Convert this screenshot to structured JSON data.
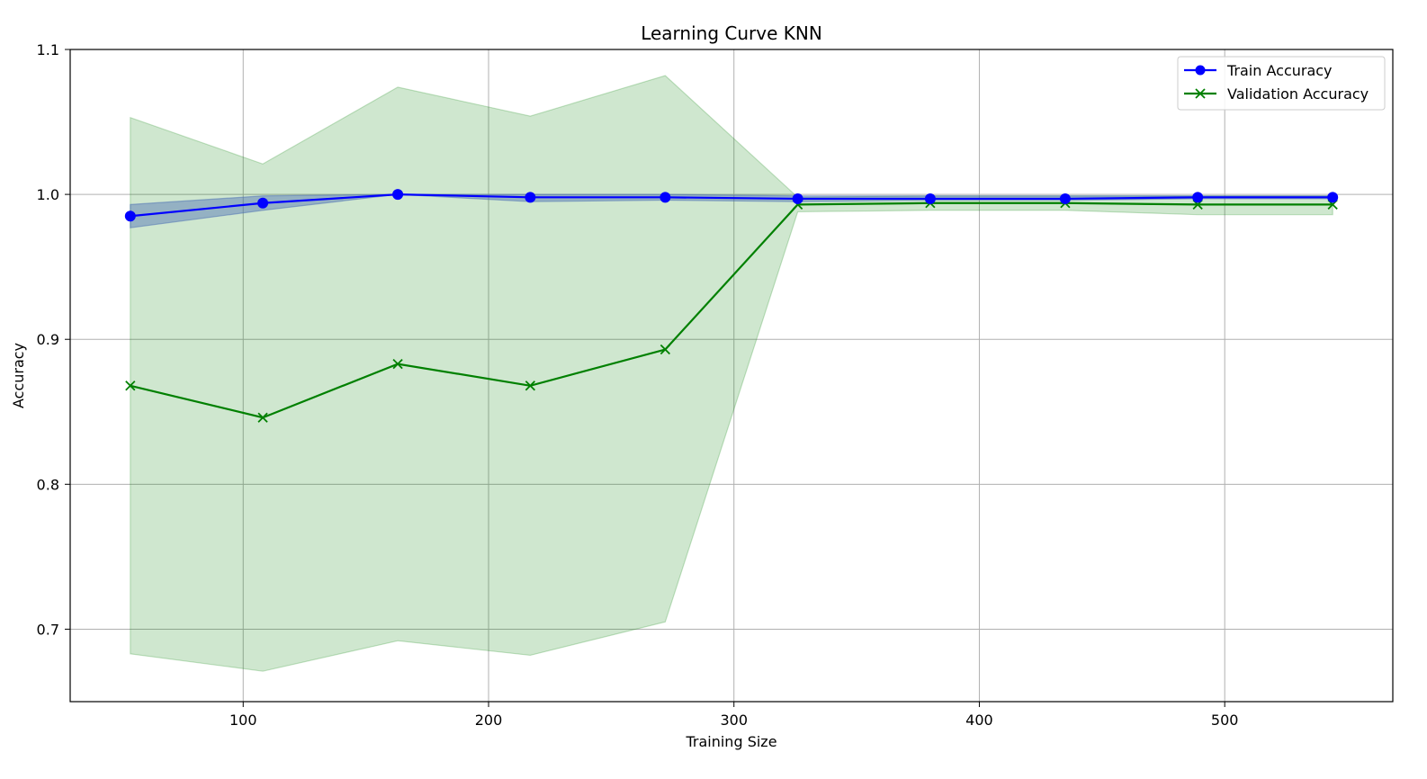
{
  "chart_data": {
    "type": "line",
    "title": "Learning Curve KNN",
    "xlabel": "Training Size",
    "ylabel": "Accuracy",
    "xlim": [
      29.5,
      568.5
    ],
    "ylim": [
      0.65,
      1.1
    ],
    "xticks": [
      100,
      200,
      300,
      400,
      500
    ],
    "yticks": [
      0.7,
      0.8,
      0.9,
      1.0,
      1.1
    ],
    "xtick_labels": [
      "100",
      "200",
      "300",
      "400",
      "500"
    ],
    "ytick_labels": [
      "0.7",
      "0.8",
      "0.9",
      "1.0",
      "1.1"
    ],
    "grid": true,
    "legend_position": "top-right",
    "x": [
      54,
      108,
      163,
      217,
      272,
      326,
      380,
      435,
      489,
      544
    ],
    "series": [
      {
        "name": "Train Accuracy",
        "color": "#0000ff",
        "marker": "circle",
        "values": [
          0.985,
          0.994,
          1.0,
          0.998,
          0.998,
          0.997,
          0.997,
          0.997,
          0.998,
          0.998
        ],
        "band_low": [
          0.977,
          0.989,
          1.0,
          0.995,
          0.996,
          0.995,
          0.996,
          0.996,
          0.997,
          0.997
        ],
        "band_high": [
          0.993,
          0.999,
          1.0,
          1.0,
          1.0,
          0.999,
          0.999,
          0.999,
          0.999,
          0.999
        ],
        "band_color": "#4c6fb3"
      },
      {
        "name": "Validation Accuracy",
        "color": "#008000",
        "marker": "x",
        "values": [
          0.868,
          0.846,
          0.883,
          0.868,
          0.893,
          0.993,
          0.994,
          0.994,
          0.993,
          0.993
        ],
        "band_low": [
          0.683,
          0.671,
          0.692,
          0.682,
          0.705,
          0.988,
          0.989,
          0.989,
          0.986,
          0.986
        ],
        "band_high": [
          1.053,
          1.021,
          1.074,
          1.054,
          1.082,
          0.998,
          0.999,
          0.999,
          0.999,
          0.999
        ],
        "band_color": "#008000"
      }
    ]
  }
}
